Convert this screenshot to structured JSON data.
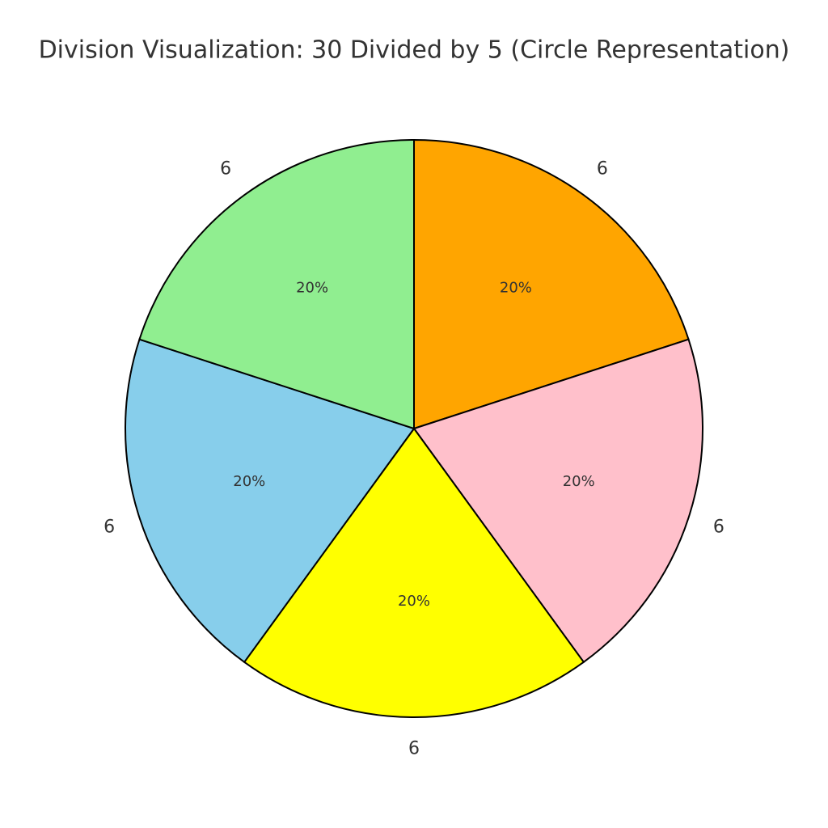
{
  "chart_data": {
    "type": "pie",
    "title": "Division Visualization: 30 Divided by 5 (Circle Representation)",
    "categories": [
      "6",
      "6",
      "6",
      "6",
      "6"
    ],
    "values": [
      20,
      20,
      20,
      20,
      20
    ],
    "value_labels": [
      "20%",
      "20%",
      "20%",
      "20%",
      "20%"
    ],
    "colors": [
      "#ffa500",
      "#ffc0cb",
      "#ffff00",
      "#87ceeb",
      "#90ee90"
    ]
  }
}
